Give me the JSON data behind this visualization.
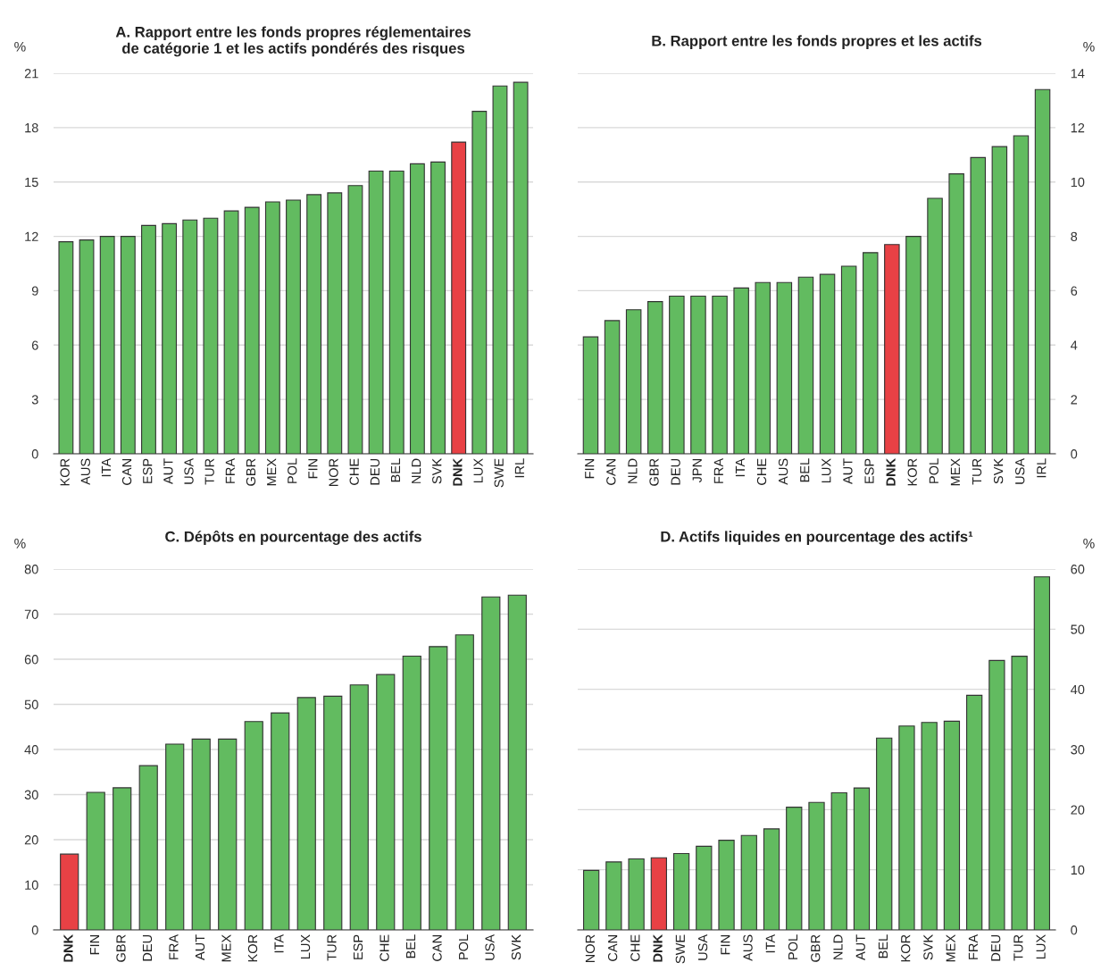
{
  "chart_data": [
    {
      "type": "bar",
      "title": "A. Rapport entre les fonds propres réglementaires\nde catégorie 1 et les actifs pondérés des risques",
      "ylabel": "%",
      "categories": [
        "KOR",
        "AUS",
        "ITA",
        "CAN",
        "ESP",
        "AUT",
        "USA",
        "TUR",
        "FRA",
        "GBR",
        "MEX",
        "POL",
        "FIN",
        "NOR",
        "CHE",
        "DEU",
        "BEL",
        "NLD",
        "SVK",
        "DNK",
        "LUX",
        "SWE",
        "IRL"
      ],
      "series": [
        {
          "values": [
            11.7,
            11.8,
            12.0,
            12.0,
            12.6,
            12.7,
            12.9,
            13.0,
            13.4,
            13.6,
            13.9,
            14.0,
            14.3,
            14.4,
            14.8,
            15.6,
            15.6,
            16.0,
            16.1,
            17.2,
            18.9,
            20.3,
            20.5
          ],
          "colors": [
            "#62bb60",
            "#62bb60",
            "#62bb60",
            "#62bb60",
            "#62bb60",
            "#62bb60",
            "#62bb60",
            "#62bb60",
            "#62bb60",
            "#62bb60",
            "#62bb60",
            "#62bb60",
            "#62bb60",
            "#62bb60",
            "#62bb60",
            "#62bb60",
            "#62bb60",
            "#62bb60",
            "#62bb60",
            "#e84145",
            "#62bb60",
            "#62bb60",
            "#62bb60"
          ]
        }
      ],
      "ylim": [
        0,
        21
      ],
      "yticks": [
        0,
        3,
        6,
        9,
        12,
        15,
        18,
        21
      ],
      "grid": "y"
    },
    {
      "type": "bar",
      "title": "B. Rapport entre les fonds propres et les actifs",
      "y2label": "%",
      "categories": [
        "FIN",
        "CAN",
        "NLD",
        "GBR",
        "DEU",
        "JPN",
        "FRA",
        "ITA",
        "CHE",
        "AUS",
        "BEL",
        "LUX",
        "AUT",
        "ESP",
        "DNK",
        "KOR",
        "POL",
        "MEX",
        "TUR",
        "SVK",
        "USA",
        "IRL"
      ],
      "series": [
        {
          "axis": "y2",
          "values": [
            4.3,
            4.9,
            5.3,
            5.6,
            5.8,
            5.8,
            5.8,
            6.1,
            6.3,
            6.3,
            6.5,
            6.6,
            6.9,
            7.4,
            7.7,
            8.0,
            9.4,
            10.3,
            10.9,
            11.3,
            11.7,
            13.4
          ],
          "colors": [
            "#62bb60",
            "#62bb60",
            "#62bb60",
            "#62bb60",
            "#62bb60",
            "#62bb60",
            "#62bb60",
            "#62bb60",
            "#62bb60",
            "#62bb60",
            "#62bb60",
            "#62bb60",
            "#62bb60",
            "#62bb60",
            "#e84145",
            "#62bb60",
            "#62bb60",
            "#62bb60",
            "#62bb60",
            "#62bb60",
            "#62bb60",
            "#62bb60"
          ]
        }
      ],
      "y2lim": [
        0,
        14
      ],
      "y2ticks": [
        0,
        2,
        4,
        6,
        8,
        10,
        12,
        14
      ],
      "grid": "y"
    },
    {
      "type": "bar",
      "title": "C. Dépôts en pourcentage des actifs",
      "ylabel": "%",
      "categories": [
        "DNK",
        "FIN",
        "GBR",
        "DEU",
        "FRA",
        "AUT",
        "MEX",
        "KOR",
        "ITA",
        "LUX",
        "TUR",
        "ESP",
        "CHE",
        "BEL",
        "CAN",
        "POL",
        "USA",
        "SVK"
      ],
      "series": [
        {
          "values": [
            16.8,
            30.5,
            31.5,
            36.4,
            41.2,
            42.3,
            42.3,
            46.2,
            48.1,
            51.5,
            51.8,
            54.3,
            56.6,
            60.7,
            62.8,
            65.4,
            73.8,
            74.2
          ],
          "colors": [
            "#e84145",
            "#62bb60",
            "#62bb60",
            "#62bb60",
            "#62bb60",
            "#62bb60",
            "#62bb60",
            "#62bb60",
            "#62bb60",
            "#62bb60",
            "#62bb60",
            "#62bb60",
            "#62bb60",
            "#62bb60",
            "#62bb60",
            "#62bb60",
            "#62bb60",
            "#62bb60"
          ]
        }
      ],
      "ylim": [
        0,
        80
      ],
      "yticks": [
        0,
        10,
        20,
        30,
        40,
        50,
        60,
        70,
        80
      ],
      "grid": "y"
    },
    {
      "type": "bar",
      "title": "D. Actifs liquides en pourcentage des actifs¹",
      "y2label": "%",
      "categories": [
        "NOR",
        "CAN",
        "CHE",
        "DNK",
        "SWE",
        "USA",
        "FIN",
        "AUS",
        "ITA",
        "POL",
        "GBR",
        "NLD",
        "AUT",
        "BEL",
        "KOR",
        "SVK",
        "MEX",
        "FRA",
        "DEU",
        "TUR",
        "LUX"
      ],
      "series": [
        {
          "axis": "y2",
          "values": [
            9.9,
            11.3,
            11.8,
            12.0,
            12.7,
            13.9,
            14.9,
            15.7,
            16.8,
            20.4,
            21.2,
            22.8,
            23.6,
            31.9,
            33.9,
            34.5,
            34.7,
            39.0,
            44.8,
            45.5,
            58.7
          ],
          "colors": [
            "#62bb60",
            "#62bb60",
            "#62bb60",
            "#e84145",
            "#62bb60",
            "#62bb60",
            "#62bb60",
            "#62bb60",
            "#62bb60",
            "#62bb60",
            "#62bb60",
            "#62bb60",
            "#62bb60",
            "#62bb60",
            "#62bb60",
            "#62bb60",
            "#62bb60",
            "#62bb60",
            "#62bb60",
            "#62bb60",
            "#62bb60"
          ]
        }
      ],
      "y2lim": [
        0,
        60
      ],
      "y2ticks": [
        0,
        10,
        20,
        30,
        40,
        50,
        60
      ],
      "grid": "y"
    }
  ]
}
